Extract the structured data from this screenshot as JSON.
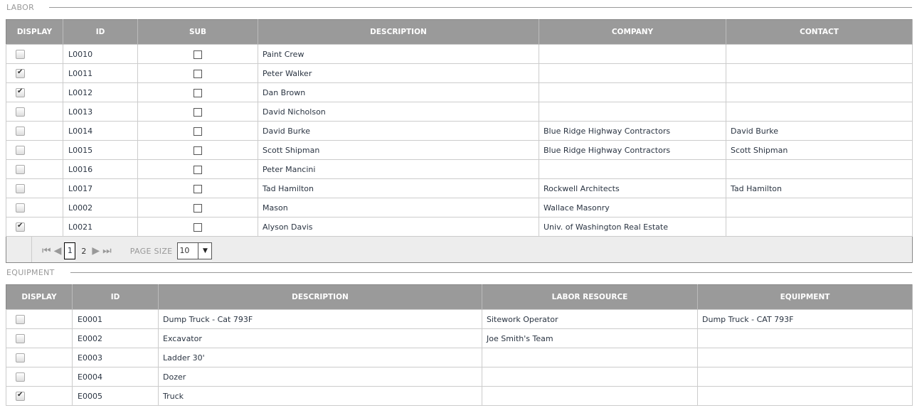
{
  "labor": {
    "title": "LABOR",
    "headers": [
      "DISPLAY",
      "ID",
      "SUB",
      "DESCRIPTION",
      "COMPANY",
      "CONTACT"
    ],
    "rows": [
      {
        "display": false,
        "id": "L0010",
        "sub": false,
        "description": "Paint Crew",
        "company": "",
        "contact": ""
      },
      {
        "display": true,
        "id": "L0011",
        "sub": false,
        "description": "Peter Walker",
        "company": "",
        "contact": ""
      },
      {
        "display": true,
        "id": "L0012",
        "sub": false,
        "description": "Dan Brown",
        "company": "",
        "contact": ""
      },
      {
        "display": false,
        "id": "L0013",
        "sub": false,
        "description": "David Nicholson",
        "company": "",
        "contact": ""
      },
      {
        "display": false,
        "id": "L0014",
        "sub": false,
        "description": "David Burke",
        "company": "Blue Ridge Highway Contractors",
        "contact": "David Burke"
      },
      {
        "display": false,
        "id": "L0015",
        "sub": false,
        "description": "Scott Shipman",
        "company": "Blue Ridge Highway Contractors",
        "contact": "Scott Shipman"
      },
      {
        "display": false,
        "id": "L0016",
        "sub": false,
        "description": "Peter Mancini",
        "company": "",
        "contact": ""
      },
      {
        "display": false,
        "id": "L0017",
        "sub": false,
        "description": "Tad Hamilton",
        "company": "Rockwell Architects",
        "contact": "Tad Hamilton"
      },
      {
        "display": false,
        "id": "L0002",
        "sub": false,
        "description": "Mason",
        "company": "Wallace Masonry",
        "contact": ""
      },
      {
        "display": true,
        "id": "L0021",
        "sub": false,
        "description": "Alyson Davis",
        "company": "Univ. of Washington Real Estate",
        "contact": ""
      }
    ],
    "pager": {
      "current": "1",
      "pages": [
        "2"
      ],
      "page_size_label": "PAGE SIZE",
      "page_size": "10"
    }
  },
  "equipment": {
    "title": "EQUIPMENT",
    "headers": [
      "DISPLAY",
      "ID",
      "DESCRIPTION",
      "LABOR RESOURCE",
      "EQUIPMENT"
    ],
    "rows": [
      {
        "display": false,
        "id": "E0001",
        "description": "Dump Truck - Cat 793F",
        "labor_resource": "Sitework Operator",
        "equipment": "Dump Truck - CAT 793F"
      },
      {
        "display": false,
        "id": "E0002",
        "description": "Excavator",
        "labor_resource": "Joe Smith's Team",
        "equipment": ""
      },
      {
        "display": false,
        "id": "E0003",
        "description": "Ladder 30'",
        "labor_resource": "",
        "equipment": ""
      },
      {
        "display": false,
        "id": "E0004",
        "description": "Dozer",
        "labor_resource": "",
        "equipment": ""
      },
      {
        "display": true,
        "id": "E0005",
        "description": "Truck",
        "labor_resource": "",
        "equipment": ""
      }
    ]
  }
}
